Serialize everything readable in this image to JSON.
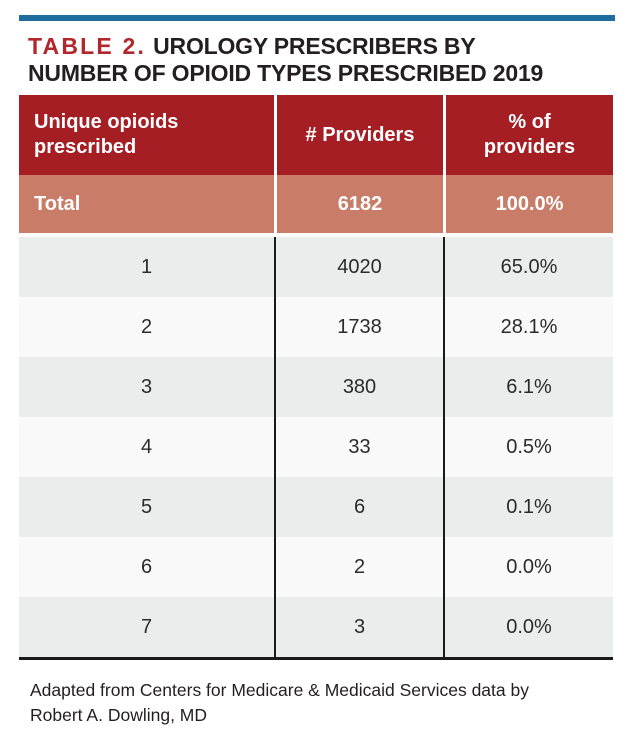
{
  "colors": {
    "accent_bar_blue": "#1E6D9E",
    "title_red": "#B2272C",
    "header_bg_red": "#A41E23",
    "total_bg_salmon": "#C97D69",
    "row_shaded_gray": "#EBECEC",
    "row_plain_white": "#F9F9F9",
    "divider_black": "#1A1A1A",
    "text_black": "#231F20"
  },
  "title": {
    "label": "TABLE 2.",
    "line1": "UROLOGY PRESCRIBERS BY",
    "line2": "NUMBER OF OPIOID TYPES PRESCRIBED 2019"
  },
  "table": {
    "headers": [
      "Unique opioids prescribed",
      "# Providers",
      "% of providers"
    ],
    "total": {
      "label": "Total",
      "providers": "6182",
      "pct": "100.0%"
    },
    "rows": [
      {
        "opioids": "1",
        "providers": "4020",
        "pct": "65.0%"
      },
      {
        "opioids": "2",
        "providers": "1738",
        "pct": "28.1%"
      },
      {
        "opioids": "3",
        "providers": "380",
        "pct": "6.1%"
      },
      {
        "opioids": "4",
        "providers": "33",
        "pct": "0.5%"
      },
      {
        "opioids": "5",
        "providers": "6",
        "pct": "0.1%"
      },
      {
        "opioids": "6",
        "providers": "2",
        "pct": "0.0%"
      },
      {
        "opioids": "7",
        "providers": "3",
        "pct": "0.0%"
      }
    ]
  },
  "footnote": {
    "line1": "Adapted from Centers for Medicare & Medicaid Services data by",
    "line2": "Robert A. Dowling, MD"
  }
}
